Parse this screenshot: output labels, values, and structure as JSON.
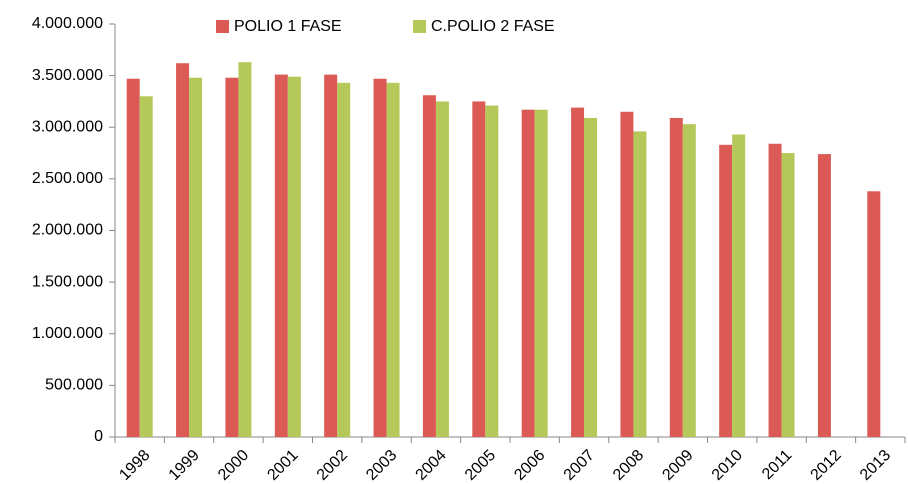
{
  "chart_data": {
    "type": "bar",
    "categories": [
      "1998",
      "1999",
      "2000",
      "2001",
      "2002",
      "2003",
      "2004",
      "2005",
      "2006",
      "2007",
      "2008",
      "2009",
      "2010",
      "2011",
      "2012",
      "2013"
    ],
    "series": [
      {
        "name": "POLIO 1 FASE",
        "color": "#dc5a55",
        "values": [
          3470000,
          3620000,
          3480000,
          3510000,
          3510000,
          3470000,
          3310000,
          3250000,
          3170000,
          3190000,
          3150000,
          3090000,
          2830000,
          2840000,
          2740000,
          2380000
        ]
      },
      {
        "name": "C.POLIO 2 FASE",
        "color": "#b5c85a",
        "values": [
          3300000,
          3480000,
          3630000,
          3490000,
          3430000,
          3430000,
          3250000,
          3210000,
          3170000,
          3090000,
          2960000,
          3030000,
          2930000,
          2750000,
          null,
          null
        ]
      }
    ],
    "ylim": [
      0,
      4000000
    ],
    "yticks": [
      0,
      {
        "value": 500000,
        "label": "500.000"
      },
      {
        "value": 1000000,
        "label": "1.000.000"
      },
      {
        "value": 1500000,
        "label": "1.500.000"
      },
      {
        "value": 2000000,
        "label": "2.000.000"
      },
      {
        "value": 2500000,
        "label": "2.500.000"
      },
      {
        "value": 3000000,
        "label": "3.000.000"
      },
      {
        "value": 3500000,
        "label": "3.500.000"
      },
      {
        "value": 4000000,
        "label": "4.000.000"
      }
    ],
    "legend": "top"
  }
}
